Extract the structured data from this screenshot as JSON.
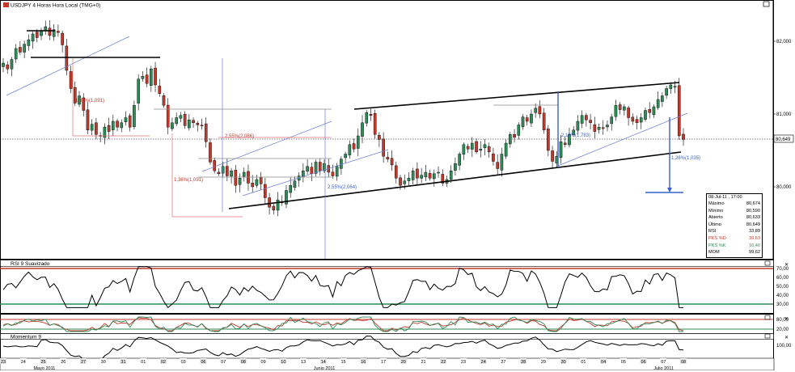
{
  "main_panel": {
    "title": "USDJPY 4 Horas Hora Local (TMG+0)",
    "yticks": [
      {
        "label": "82,000",
        "value": 82.0
      },
      {
        "label": "81,000",
        "value": 81.0
      },
      {
        "label": "80,000",
        "value": 80.0
      }
    ],
    "last_price_label": "80,649",
    "last_price": 80.649
  },
  "annotations": [
    {
      "id": "fib1",
      "text": "1,33%(1,091)",
      "color": "#c0392b"
    },
    {
      "id": "fib2",
      "text": "1,36%(1,091)",
      "color": "#c0392b"
    },
    {
      "id": "fib3",
      "text": "2,55%(2,086)",
      "color": "#c0392b"
    },
    {
      "id": "fib4",
      "text": "2,55%(2,064)",
      "color": "#3a5fcd"
    },
    {
      "id": "fib5",
      "text": "2,19%(1,783)",
      "color": "#3a5fcd"
    },
    {
      "id": "fib6",
      "text": "1,26%(1,035)",
      "color": "#3a5fcd"
    }
  ],
  "info_box": {
    "date": "08-Jul-11 , 17:00",
    "rows": [
      {
        "label": "Máximo",
        "value": "80,674",
        "color": "#000000"
      },
      {
        "label": "Mínimo",
        "value": "80,590",
        "color": "#000000"
      },
      {
        "label": "Abierto",
        "value": "80,633",
        "color": "#000000"
      },
      {
        "label": "Último",
        "value": "80,649",
        "color": "#000000"
      },
      {
        "label": "RSI",
        "value": "33,89",
        "color": "#000000"
      },
      {
        "label": "PKS %D",
        "value": "39,63",
        "color": "#c0392b"
      },
      {
        "label": "PKS %K",
        "value": "16,40",
        "color": "#2e8b57"
      },
      {
        "label": "MOM",
        "value": "99,62",
        "color": "#000000"
      }
    ]
  },
  "rsi_panel": {
    "title": "RSI 9 Suavizado",
    "yticks": [
      "70,00",
      "60,00",
      "50,00",
      "40,00",
      "30,00"
    ],
    "upper_level": 70,
    "lower_level": 30,
    "upper_color": "#c0392b",
    "lower_color": "#2e8b57"
  },
  "stoch_panel": {
    "yticks": [
      "80,00",
      "20,00"
    ]
  },
  "mom_panel": {
    "title": "Momentum 9",
    "yticks": [
      "100,00"
    ]
  },
  "x_axis": {
    "days": [
      "23",
      "24",
      "25",
      "26",
      "27",
      "30",
      "31",
      "01",
      "02",
      "03",
      "06",
      "07",
      "08",
      "09",
      "10",
      "13",
      "14",
      "15",
      "16",
      "17",
      "20",
      "21",
      "22",
      "23",
      "24",
      "27",
      "28",
      "29",
      "30",
      "01",
      "04",
      "05",
      "06",
      "07",
      "08"
    ],
    "months": [
      {
        "label": "Mayo 2011",
        "day_index": 2
      },
      {
        "label": "Junio 2011",
        "day_index": 16
      },
      {
        "label": "Julio 2011",
        "day_index": 33
      }
    ]
  },
  "window_buttons": [
    "window-icon",
    "close-icon"
  ],
  "colors": {
    "bull": "#2e8b57",
    "bear": "#c0392b",
    "trend_black": "#000000",
    "channel_blue": "#6b7fd7",
    "fib_red": "#e07070",
    "fib_blue": "#3a5fcd"
  },
  "chart_data": {
    "type": "candlestick",
    "series": [
      {
        "name": "USDJPY",
        "values": [
          81.7,
          81.62,
          81.75,
          81.9,
          81.85,
          81.96,
          82.02,
          82.1,
          82.05,
          82.14,
          82.2,
          82.08,
          82.16,
          82.12,
          81.95,
          81.6,
          81.35,
          81.15,
          81.25,
          81.05,
          80.78,
          80.86,
          80.72,
          80.7,
          80.82,
          80.76,
          80.9,
          80.82,
          80.88,
          80.95,
          80.82,
          81.12,
          81.48,
          81.52,
          81.42,
          81.62,
          81.4,
          81.28,
          81.12,
          80.82,
          80.88,
          80.95,
          80.98,
          80.84,
          80.92,
          80.88,
          80.85,
          80.84,
          80.62,
          80.34,
          80.22,
          80.18,
          80.28,
          80.15,
          80.22,
          80.02,
          80.12,
          80.2,
          80.05,
          80.0,
          80.1,
          80.04,
          79.85,
          79.72,
          79.68,
          79.82,
          79.78,
          79.95,
          80.02,
          80.08,
          80.15,
          80.22,
          80.28,
          80.18,
          80.34,
          80.22,
          80.32,
          80.2,
          80.15,
          80.28,
          80.38,
          80.45,
          80.58,
          80.52,
          80.7,
          80.88,
          81.02,
          80.98,
          80.72,
          80.65,
          80.42,
          80.38,
          80.3,
          80.12,
          80.02,
          80.08,
          80.12,
          80.22,
          80.12,
          80.16,
          80.2,
          80.12,
          80.18,
          80.2,
          80.05,
          80.1,
          80.22,
          80.32,
          80.45,
          80.58,
          80.52,
          80.6,
          80.48,
          80.52,
          80.58,
          80.48,
          80.35,
          80.25,
          80.45,
          80.6,
          80.72,
          80.68,
          80.85,
          80.96,
          80.9,
          81.0,
          81.08,
          81.0,
          80.78,
          80.5,
          80.35,
          80.42,
          80.62,
          80.58,
          80.72,
          80.78,
          80.9,
          80.98,
          80.92,
          80.88,
          80.76,
          80.82,
          80.8,
          80.85,
          80.96,
          81.12,
          81.06,
          81.1,
          80.95,
          80.9,
          80.88,
          80.95,
          81.05,
          81.02,
          81.1,
          81.2,
          81.25,
          81.35,
          81.4,
          81.38,
          80.7,
          80.65
        ]
      }
    ],
    "ylim": [
      79.0,
      82.4
    ]
  }
}
